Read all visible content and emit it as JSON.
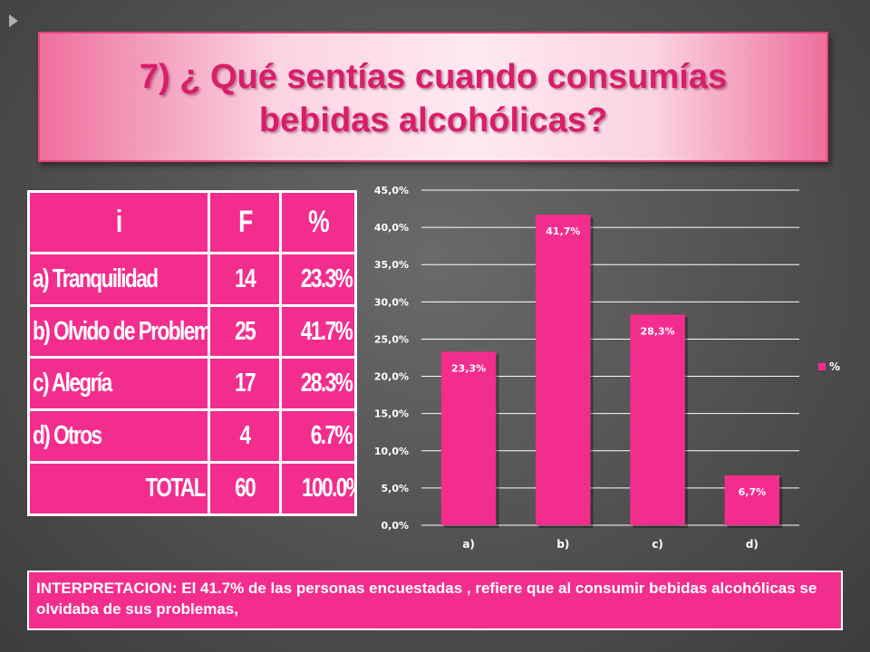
{
  "title": {
    "line1": "7) ¿ Qué sentías cuando consumías",
    "line2": "bebidas alcohólicas?"
  },
  "table": {
    "headers": [
      "i",
      "F",
      "%"
    ],
    "rows": [
      [
        "a) Tranquilidad",
        "14",
        "23.3%"
      ],
      [
        "b) Olvido de Problemas",
        "25",
        "41.7%"
      ],
      [
        "c) Alegría",
        "17",
        "28.3%"
      ],
      [
        "d) Otros",
        "4",
        "6.7%"
      ],
      [
        "TOTAL",
        "60",
        "100.0%"
      ]
    ]
  },
  "chart_data": {
    "type": "bar",
    "categories": [
      "a)",
      "b)",
      "c)",
      "d)"
    ],
    "series": [
      {
        "name": "%",
        "values": [
          23.3,
          41.7,
          28.3,
          6.7
        ],
        "labels": [
          "23,3%",
          "41,7%",
          "28,3%",
          "6,7%"
        ]
      }
    ],
    "ylim": [
      0,
      45
    ],
    "yticks": [
      "0,0%",
      "5,0%",
      "10,0%",
      "15,0%",
      "20,0%",
      "25,0%",
      "30,0%",
      "35,0%",
      "40,0%",
      "45,0%"
    ],
    "grid": true,
    "legend": "right",
    "bar_color": "#f32d8d"
  },
  "interpretation": {
    "text": "INTERPRETACION: El 41.7% de las personas encuestadas , refiere que al consumir bebidas alcohólicas se olvidaba de sus problemas,"
  }
}
